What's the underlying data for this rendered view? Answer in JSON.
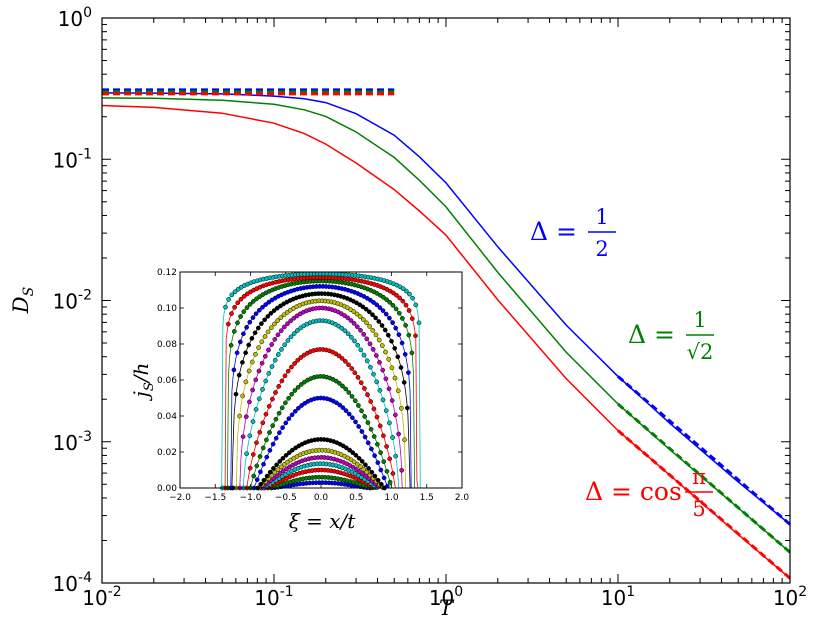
{
  "chart_data": [
    {
      "type": "line",
      "scale": "log-log",
      "xlabel": "T",
      "ylabel": "D",
      "ylabel_sub": "S",
      "xlim": [
        0.01,
        100
      ],
      "ylim": [
        0.0001,
        1
      ],
      "grid": false,
      "x_ticks": [
        {
          "value": 0.01,
          "base": "10",
          "exp": "-2"
        },
        {
          "value": 0.1,
          "base": "10",
          "exp": "-1"
        },
        {
          "value": 1,
          "base": "10",
          "exp": "0"
        },
        {
          "value": 10,
          "base": "10",
          "exp": "1"
        },
        {
          "value": 100,
          "base": "10",
          "exp": "2"
        }
      ],
      "y_ticks": [
        {
          "value": 0.0001,
          "base": "10",
          "exp": "-4"
        },
        {
          "value": 0.001,
          "base": "10",
          "exp": "-3"
        },
        {
          "value": 0.01,
          "base": "10",
          "exp": "-2"
        },
        {
          "value": 0.1,
          "base": "10",
          "exp": "-1"
        },
        {
          "value": 1,
          "base": "10",
          "exp": "0"
        }
      ],
      "series": [
        {
          "name": "Δ = 1/2",
          "color": "#0000ff",
          "label_main": "Δ = ",
          "label_num": "1",
          "label_den": "2",
          "x": [
            0.01,
            0.02,
            0.05,
            0.1,
            0.15,
            0.2,
            0.3,
            0.5,
            0.7,
            1,
            2,
            5,
            10,
            20,
            50,
            100
          ],
          "values": [
            0.295,
            0.294,
            0.29,
            0.28,
            0.268,
            0.252,
            0.21,
            0.148,
            0.104,
            0.068,
            0.024,
            0.0067,
            0.0029,
            0.00135,
            0.00052,
            0.00026
          ],
          "asymptote_low": {
            "x": [
              0.01,
              0.5
            ],
            "value": 0.31
          },
          "asymptote_high": {
            "x": [
              10,
              100
            ],
            "values": [
              0.0029,
              0.00026
            ]
          }
        },
        {
          "name": "Δ = 1/√2",
          "color": "#008000",
          "label_main": "Δ = ",
          "label_num": "1",
          "label_den": "√2",
          "x": [
            0.01,
            0.02,
            0.05,
            0.1,
            0.15,
            0.2,
            0.3,
            0.5,
            0.7,
            1,
            2,
            5,
            10,
            20,
            50,
            100
          ],
          "values": [
            0.272,
            0.27,
            0.262,
            0.245,
            0.224,
            0.201,
            0.156,
            0.103,
            0.071,
            0.046,
            0.0158,
            0.0043,
            0.00185,
            0.00088,
            0.00034,
            0.000165
          ],
          "asymptote_low": {
            "x": [
              0.01,
              0.5
            ],
            "value": 0.3
          },
          "asymptote_high": {
            "x": [
              10,
              100
            ],
            "values": [
              0.00185,
              0.000165
            ]
          }
        },
        {
          "name": "Δ = cos π/5",
          "color": "#ff0000",
          "label_main": "Δ = cos",
          "label_num": "π",
          "label_den": "5",
          "x": [
            0.01,
            0.02,
            0.05,
            0.1,
            0.15,
            0.2,
            0.3,
            0.5,
            0.7,
            1,
            2,
            5,
            10,
            20,
            50,
            100
          ],
          "values": [
            0.24,
            0.233,
            0.212,
            0.18,
            0.152,
            0.128,
            0.094,
            0.061,
            0.043,
            0.029,
            0.0101,
            0.0028,
            0.0012,
            0.00058,
            0.00022,
            0.000108
          ],
          "asymptote_low": {
            "x": [
              0.01,
              0.5
            ],
            "value": 0.29
          },
          "asymptote_high": {
            "x": [
              10,
              100
            ],
            "values": [
              0.0012,
              0.000108
            ]
          }
        }
      ]
    },
    {
      "type": "scatter",
      "role": "inset",
      "xlabel": "ξ = x/t",
      "ylabel": "j",
      "ylabel_sub": "S",
      "ylabel_tail": "/h",
      "xlim": [
        -2.0,
        2.0
      ],
      "ylim": [
        0.0,
        0.12
      ],
      "x_tick_labels": [
        "−2.0",
        "−1.5",
        "−1.0",
        "−0.5",
        "0.0",
        "0.5",
        "1.0",
        "1.5",
        "2.0"
      ],
      "x_tick_values": [
        -2.0,
        -1.5,
        -1.0,
        -0.5,
        0.0,
        0.5,
        1.0,
        1.5,
        2.0
      ],
      "y_tick_labels": [
        "0.00",
        "0.02",
        "0.04",
        "0.06",
        "0.08",
        "0.10",
        "0.12"
      ],
      "y_tick_values": [
        0.0,
        0.02,
        0.04,
        0.06,
        0.08,
        0.1,
        0.12
      ],
      "marker_colors": [
        "#0000ff",
        "#008000",
        "#ff0000",
        "#00bfbf",
        "#bf00bf",
        "#bfbf00",
        "#000000"
      ],
      "curves": [
        {
          "peak": 0.003,
          "halfwidth": 0.7,
          "power": 1.5
        },
        {
          "peak": 0.006,
          "halfwidth": 0.75,
          "power": 1.6
        },
        {
          "peak": 0.01,
          "halfwidth": 0.8,
          "power": 1.7
        },
        {
          "peak": 0.0135,
          "halfwidth": 0.82,
          "power": 1.8
        },
        {
          "peak": 0.017,
          "halfwidth": 0.85,
          "power": 1.9
        },
        {
          "peak": 0.021,
          "halfwidth": 0.88,
          "power": 2.0
        },
        {
          "peak": 0.027,
          "halfwidth": 0.9,
          "power": 2.0
        },
        {
          "peak": 0.05,
          "halfwidth": 0.95,
          "power": 2.2
        },
        {
          "peak": 0.062,
          "halfwidth": 1.0,
          "power": 2.4
        },
        {
          "peak": 0.077,
          "halfwidth": 1.05,
          "power": 2.8
        },
        {
          "peak": 0.093,
          "halfwidth": 1.1,
          "power": 3.5
        },
        {
          "peak": 0.1,
          "halfwidth": 1.15,
          "power": 4.5
        },
        {
          "peak": 0.104,
          "halfwidth": 1.2,
          "power": 6.0
        },
        {
          "peak": 0.108,
          "halfwidth": 1.25,
          "power": 8.0
        },
        {
          "peak": 0.112,
          "halfwidth": 1.28,
          "power": 11.0
        },
        {
          "peak": 0.115,
          "halfwidth": 1.32,
          "power": 16.0
        },
        {
          "peak": 0.117,
          "halfwidth": 1.36,
          "power": 24.0
        },
        {
          "peak": 0.119,
          "halfwidth": 1.4,
          "power": 36.0
        }
      ]
    }
  ]
}
